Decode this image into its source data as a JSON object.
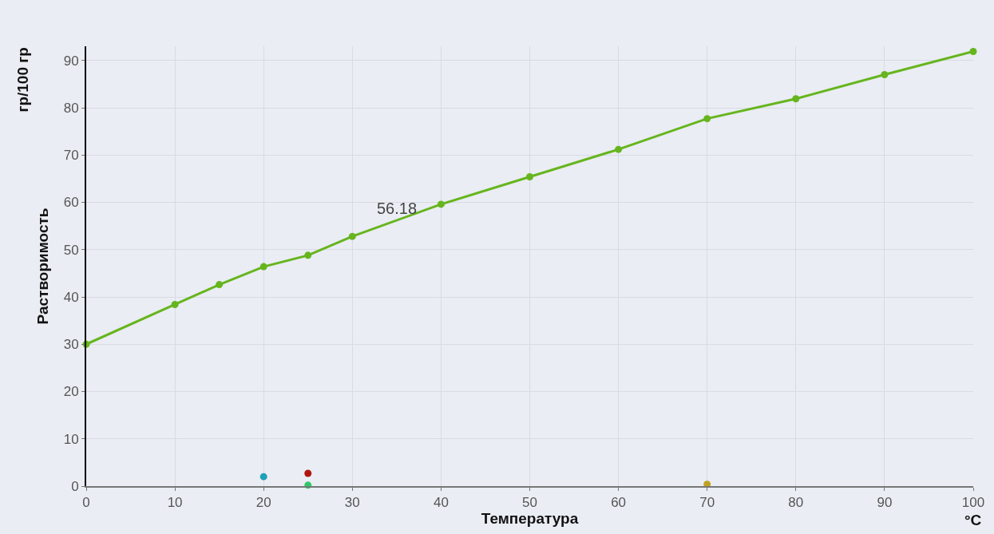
{
  "chart_data": {
    "type": "line",
    "xlabel": "Температура",
    "ylabel": "Растворимость",
    "annotations": [
      {
        "text": "56.18",
        "x": 35,
        "y": 56.18
      },
      "гр/100 гр",
      "°C"
    ],
    "x": [
      0,
      10,
      15,
      20,
      25,
      30,
      40,
      50,
      60,
      70,
      80,
      90,
      100
    ],
    "series": [
      {
        "color": "#66b51e",
        "values": [
          30,
          38.4,
          42.6,
          46.4,
          48.8,
          52.8,
          59.6,
          65.4,
          71.2,
          77.7,
          81.9,
          87.0,
          91.9
        ]
      },
      {
        "type": "scatter",
        "color": "#1fa0b8",
        "x": [
          20
        ],
        "values": [
          2.0
        ]
      },
      {
        "type": "scatter",
        "color": "#b0160e",
        "x": [
          25
        ],
        "values": [
          2.7
        ]
      },
      {
        "type": "scatter",
        "color": "#2ec866",
        "x": [
          25
        ],
        "values": [
          0.2
        ]
      },
      {
        "type": "scatter",
        "color": "#c0a020",
        "x": [
          70
        ],
        "values": [
          0.4
        ]
      }
    ],
    "xlim": [
      0,
      100
    ],
    "xticks": [
      0,
      10,
      20,
      30,
      40,
      50,
      60,
      70,
      80,
      90,
      100
    ],
    "ylim": [
      0,
      93
    ],
    "yticks": [
      0,
      10,
      20,
      30,
      40,
      50,
      60,
      70,
      80,
      90
    ],
    "grid": true,
    "marker": "circle",
    "line_style": "solid"
  }
}
